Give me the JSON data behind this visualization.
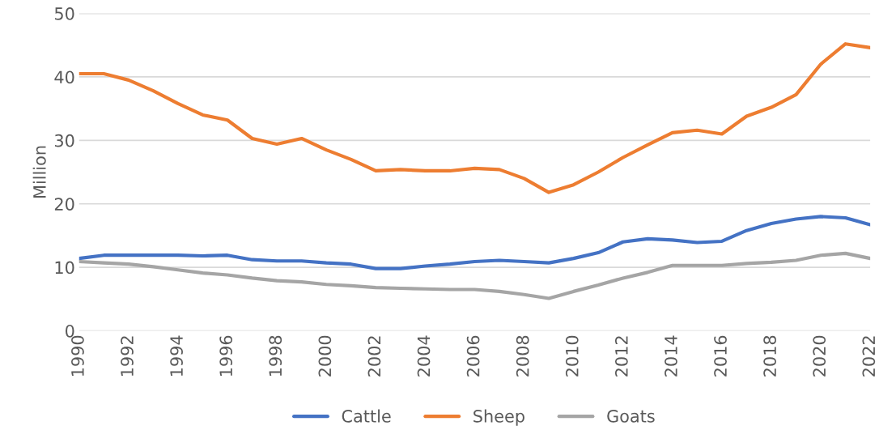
{
  "chart_data": {
    "type": "line",
    "ylabel": "Million",
    "x": [
      1990,
      1991,
      1992,
      1993,
      1994,
      1995,
      1996,
      1997,
      1998,
      1999,
      2000,
      2001,
      2002,
      2003,
      2004,
      2005,
      2006,
      2007,
      2008,
      2009,
      2010,
      2011,
      2012,
      2013,
      2014,
      2015,
      2016,
      2017,
      2018,
      2019,
      2020,
      2021,
      2022
    ],
    "series": [
      {
        "name": "Cattle",
        "color": "#4472c4",
        "values": [
          11.4,
          11.9,
          11.9,
          11.9,
          11.9,
          11.8,
          11.9,
          11.2,
          11.0,
          11.0,
          10.7,
          10.5,
          9.8,
          9.8,
          10.2,
          10.5,
          10.9,
          11.1,
          10.9,
          10.7,
          11.4,
          12.3,
          14.0,
          14.5,
          14.3,
          13.9,
          14.1,
          15.8,
          16.9,
          17.6,
          18.0,
          17.8,
          16.7
        ]
      },
      {
        "name": "Sheep",
        "color": "#ed7d31",
        "values": [
          40.5,
          40.5,
          39.5,
          37.8,
          35.8,
          34.0,
          33.2,
          30.3,
          29.4,
          30.3,
          28.5,
          27.0,
          25.2,
          25.4,
          25.2,
          25.2,
          25.6,
          25.4,
          24.0,
          21.8,
          23.0,
          25.0,
          27.3,
          29.3,
          31.2,
          31.6,
          31.0,
          33.8,
          35.2,
          37.2,
          42.0,
          45.2,
          44.6
        ]
      },
      {
        "name": "Goats",
        "color": "#a5a5a5",
        "values": [
          10.9,
          10.7,
          10.5,
          10.1,
          9.6,
          9.1,
          8.8,
          8.3,
          7.9,
          7.7,
          7.3,
          7.1,
          6.8,
          6.7,
          6.6,
          6.5,
          6.5,
          6.2,
          5.7,
          5.1,
          6.2,
          7.2,
          8.3,
          9.2,
          10.3,
          10.3,
          10.3,
          10.6,
          10.8,
          11.1,
          11.9,
          12.2,
          11.4
        ]
      }
    ],
    "xlim": [
      1990,
      2022
    ],
    "xticks": [
      1990,
      1992,
      1994,
      1996,
      1998,
      2000,
      2002,
      2004,
      2006,
      2008,
      2010,
      2012,
      2014,
      2016,
      2018,
      2020,
      2022
    ],
    "ylim": [
      0,
      50
    ],
    "yticks": [
      0,
      10,
      20,
      30,
      40,
      50
    ],
    "grid": "y",
    "legend": "bottom",
    "marker": "none",
    "line_style": "solid"
  }
}
